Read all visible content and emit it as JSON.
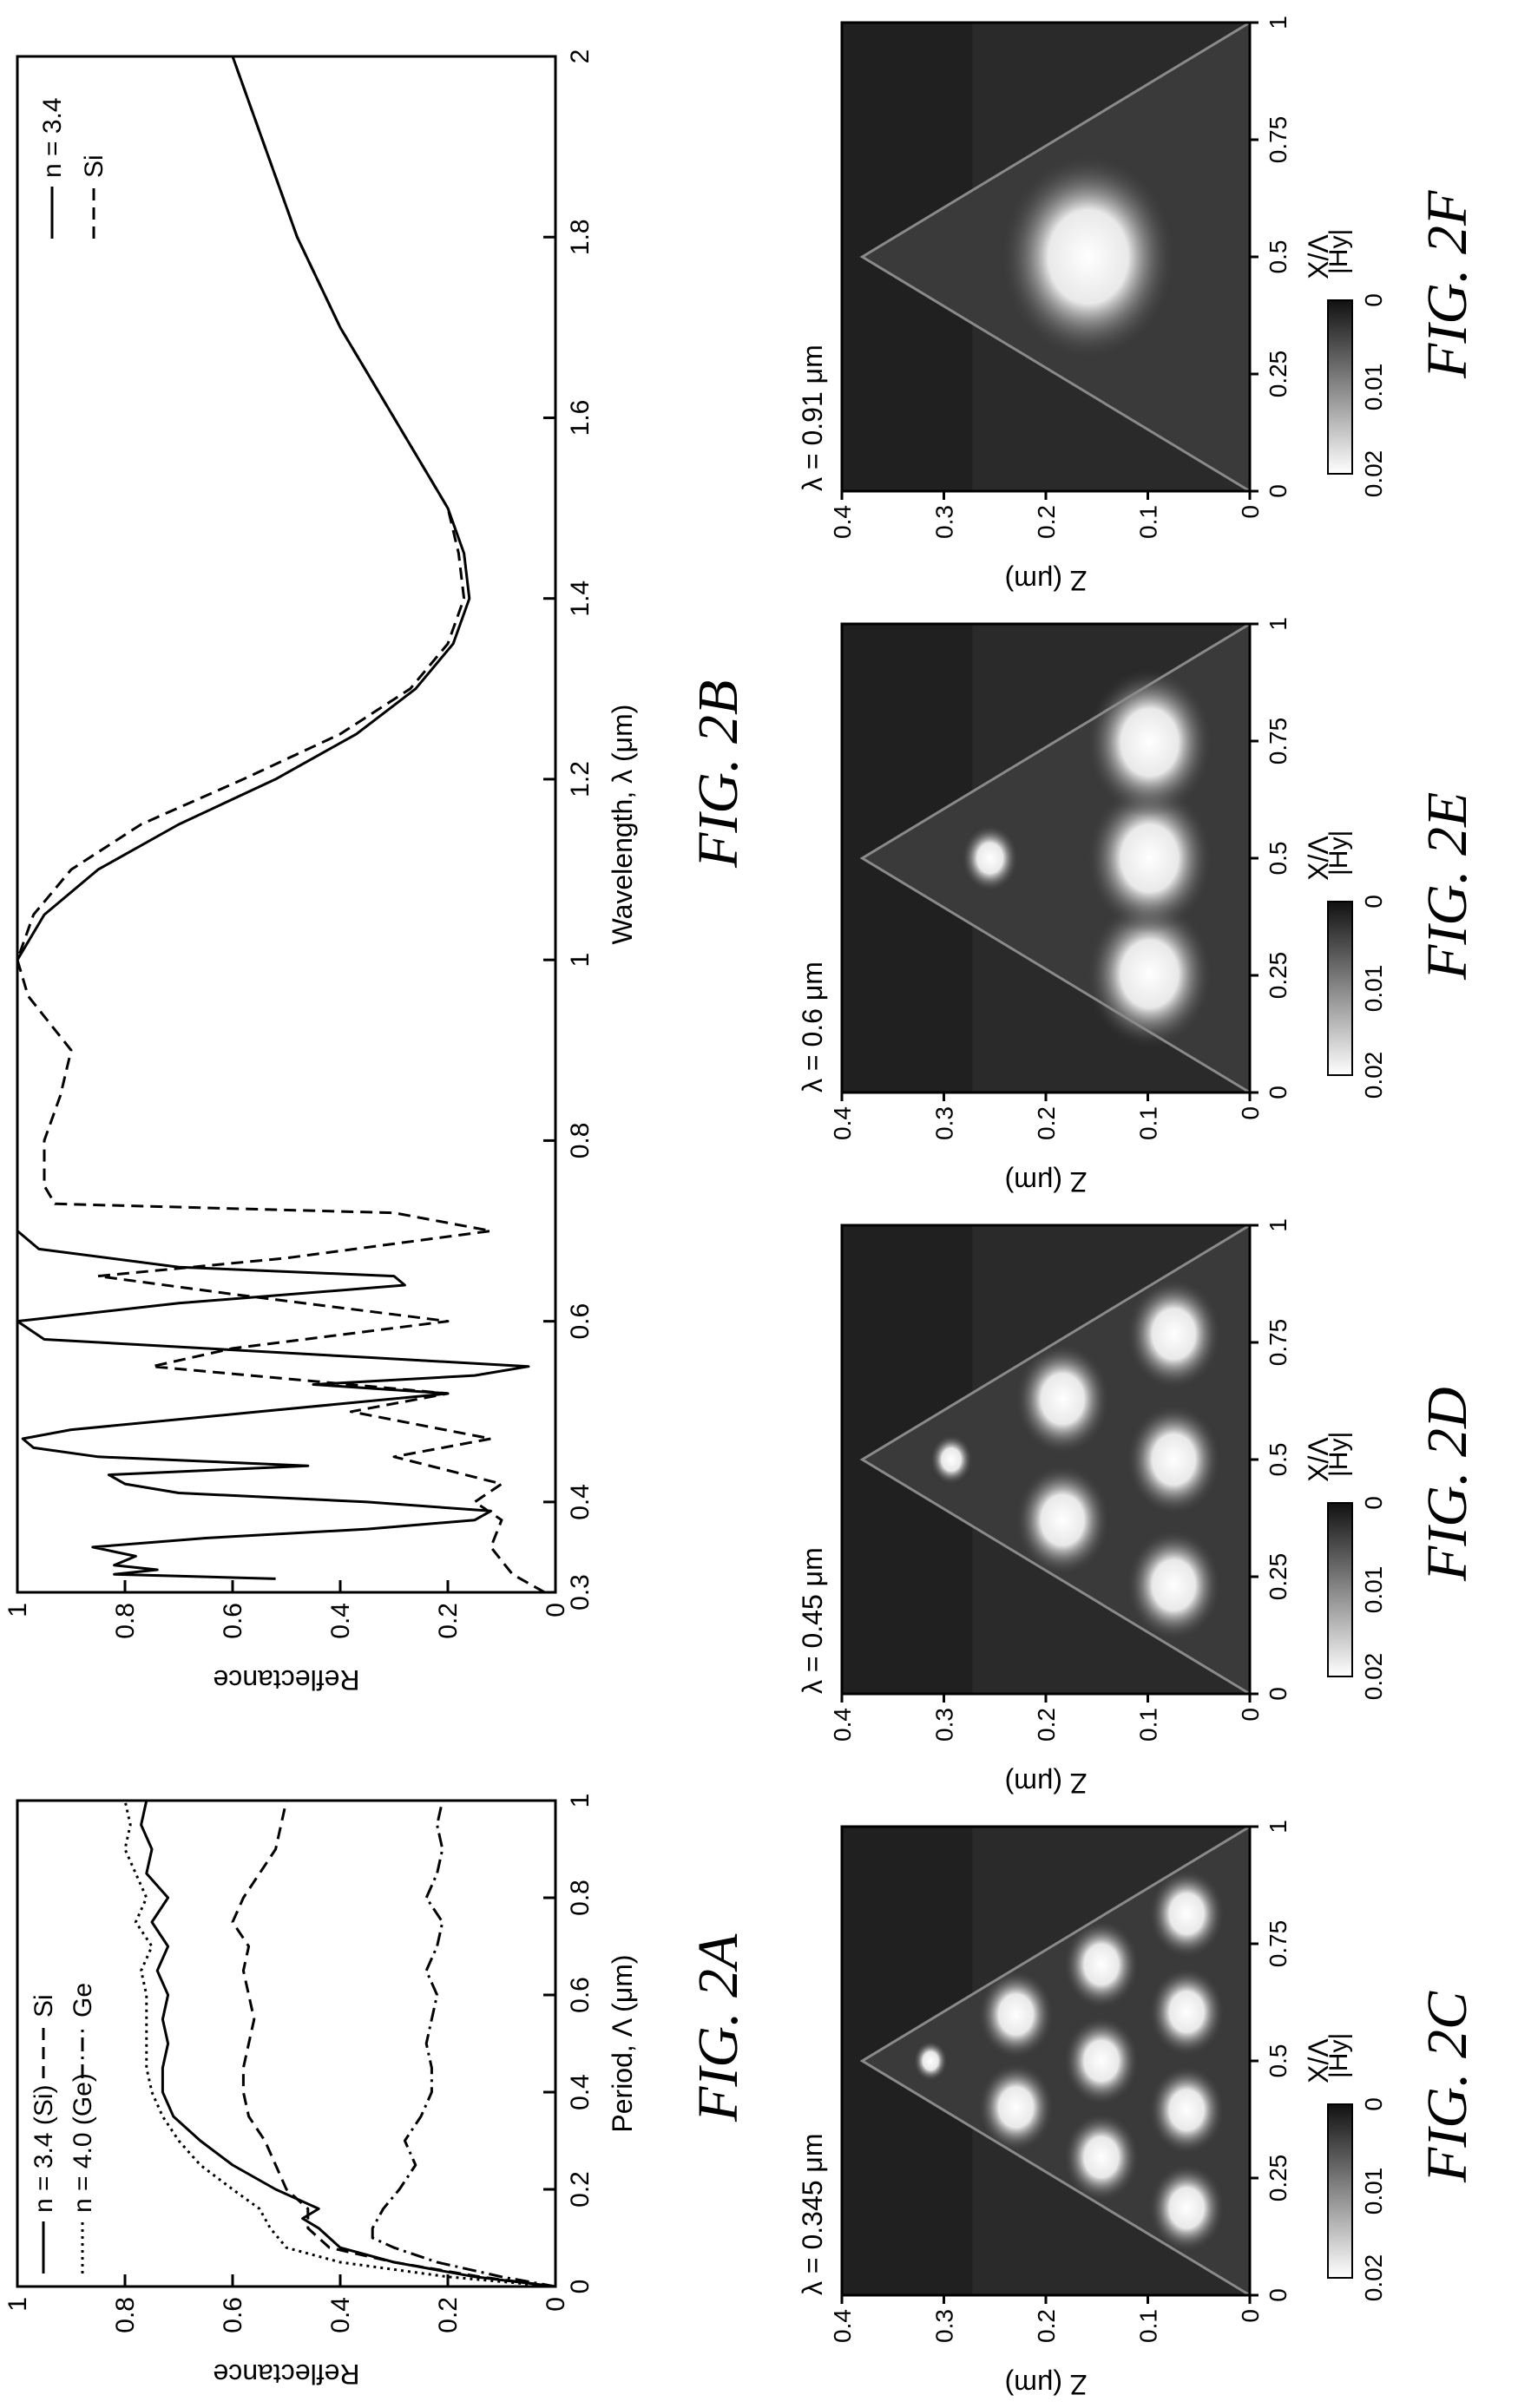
{
  "figures": {
    "fig2a": {
      "caption": "FIG. 2A",
      "chart_data": {
        "type": "line",
        "xlabel": "Period, Λ (μm)",
        "ylabel": "Reflectance",
        "xlim": [
          0,
          1
        ],
        "ylim": [
          0,
          1
        ],
        "xticks": [
          "0",
          "0.2",
          "0.4",
          "0.6",
          "0.8",
          "1"
        ],
        "yticks": [
          "0",
          "0.2",
          "0.4",
          "0.6",
          "0.8",
          "1"
        ],
        "legend_position": "top",
        "series": [
          {
            "name": "n = 3.4 (Si)",
            "style": "solid",
            "x": [
              0,
              0.02,
              0.05,
              0.08,
              0.12,
              0.14,
              0.16,
              0.2,
              0.25,
              0.3,
              0.35,
              0.4,
              0.45,
              0.5,
              0.55,
              0.6,
              0.65,
              0.7,
              0.75,
              0.8,
              0.85,
              0.9,
              0.95,
              1.0
            ],
            "y": [
              0.0,
              0.15,
              0.3,
              0.4,
              0.44,
              0.47,
              0.44,
              0.52,
              0.6,
              0.66,
              0.71,
              0.73,
              0.73,
              0.72,
              0.73,
              0.72,
              0.74,
              0.72,
              0.75,
              0.72,
              0.76,
              0.75,
              0.77,
              0.76
            ]
          },
          {
            "name": "Si",
            "style": "dashed",
            "x": [
              0,
              0.02,
              0.05,
              0.08,
              0.12,
              0.16,
              0.2,
              0.25,
              0.3,
              0.35,
              0.4,
              0.45,
              0.5,
              0.55,
              0.6,
              0.65,
              0.7,
              0.75,
              0.8,
              0.85,
              0.9,
              0.95,
              1.0
            ],
            "y": [
              0.0,
              0.14,
              0.3,
              0.42,
              0.46,
              0.46,
              0.5,
              0.52,
              0.54,
              0.57,
              0.58,
              0.58,
              0.57,
              0.56,
              0.57,
              0.58,
              0.57,
              0.6,
              0.58,
              0.55,
              0.52,
              0.51,
              0.5
            ]
          },
          {
            "name": "n = 4.0 (Ge)",
            "style": "dotted",
            "x": [
              0,
              0.02,
              0.05,
              0.08,
              0.12,
              0.16,
              0.2,
              0.25,
              0.3,
              0.35,
              0.4,
              0.45,
              0.5,
              0.55,
              0.6,
              0.65,
              0.7,
              0.75,
              0.8,
              0.85,
              0.9,
              0.95,
              1.0
            ],
            "y": [
              0.0,
              0.2,
              0.4,
              0.5,
              0.53,
              0.55,
              0.6,
              0.66,
              0.7,
              0.73,
              0.75,
              0.76,
              0.76,
              0.76,
              0.76,
              0.77,
              0.75,
              0.78,
              0.76,
              0.78,
              0.8,
              0.79,
              0.8
            ]
          },
          {
            "name": "Ge",
            "style": "dashdot",
            "x": [
              0,
              0.02,
              0.05,
              0.08,
              0.1,
              0.12,
              0.16,
              0.2,
              0.25,
              0.3,
              0.35,
              0.4,
              0.45,
              0.5,
              0.55,
              0.6,
              0.65,
              0.7,
              0.75,
              0.8,
              0.85,
              0.9,
              0.95,
              1.0
            ],
            "y": [
              0.0,
              0.1,
              0.22,
              0.3,
              0.34,
              0.34,
              0.32,
              0.29,
              0.26,
              0.28,
              0.25,
              0.23,
              0.23,
              0.24,
              0.23,
              0.22,
              0.24,
              0.22,
              0.21,
              0.24,
              0.22,
              0.21,
              0.22,
              0.21
            ]
          }
        ]
      }
    },
    "fig2b": {
      "caption": "FIG. 2B",
      "chart_data": {
        "type": "line",
        "xlabel": "Wavelength, λ (μm)",
        "ylabel": "Reflectance",
        "xlim": [
          0.3,
          2
        ],
        "ylim": [
          0,
          1
        ],
        "xticks": [
          "0.3",
          "0.4",
          "0.6",
          "0.8",
          "1",
          "1.2",
          "1.4",
          "1.6",
          "1.8",
          "2"
        ],
        "yticks": [
          "0",
          "0.2",
          "0.4",
          "0.6",
          "0.8",
          "1"
        ],
        "legend_position": "top-right",
        "series": [
          {
            "name": "n = 3.4",
            "style": "solid",
            "x": [
              0.315,
              0.32,
              0.325,
              0.33,
              0.34,
              0.35,
              0.36,
              0.37,
              0.38,
              0.39,
              0.4,
              0.41,
              0.42,
              0.43,
              0.44,
              0.45,
              0.46,
              0.47,
              0.48,
              0.5,
              0.52,
              0.53,
              0.54,
              0.55,
              0.56,
              0.58,
              0.6,
              0.62,
              0.64,
              0.65,
              0.66,
              0.68,
              0.7,
              0.72,
              0.75,
              0.8,
              0.9,
              1.0,
              1.05,
              1.1,
              1.15,
              1.2,
              1.25,
              1.3,
              1.35,
              1.4,
              1.45,
              1.5,
              1.6,
              1.7,
              1.8,
              1.9,
              2.0
            ],
            "y": [
              0.52,
              0.82,
              0.74,
              0.82,
              0.78,
              0.86,
              0.65,
              0.35,
              0.15,
              0.12,
              0.35,
              0.7,
              0.8,
              0.83,
              0.46,
              0.85,
              0.97,
              0.99,
              0.9,
              0.55,
              0.2,
              0.45,
              0.15,
              0.05,
              0.35,
              0.95,
              1.0,
              0.7,
              0.28,
              0.3,
              0.7,
              0.96,
              1.0,
              1.0,
              1.0,
              1.0,
              1.0,
              1.0,
              0.95,
              0.85,
              0.7,
              0.52,
              0.37,
              0.26,
              0.19,
              0.16,
              0.17,
              0.2,
              0.3,
              0.4,
              0.48,
              0.54,
              0.6
            ]
          },
          {
            "name": "Si",
            "style": "dashed",
            "x": [
              0.3,
              0.32,
              0.35,
              0.38,
              0.4,
              0.42,
              0.45,
              0.47,
              0.5,
              0.52,
              0.55,
              0.57,
              0.6,
              0.63,
              0.65,
              0.67,
              0.7,
              0.72,
              0.73,
              0.75,
              0.8,
              0.85,
              0.9,
              0.93,
              0.96,
              1.0,
              1.05,
              1.1,
              1.15,
              1.2,
              1.25,
              1.3,
              1.35,
              1.4,
              1.45,
              1.5,
              1.6,
              1.7,
              1.8,
              1.9,
              2.0
            ],
            "y": [
              0.02,
              0.08,
              0.12,
              0.1,
              0.15,
              0.1,
              0.3,
              0.12,
              0.38,
              0.2,
              0.75,
              0.6,
              0.2,
              0.6,
              0.85,
              0.5,
              0.12,
              0.3,
              0.93,
              0.95,
              0.95,
              0.92,
              0.9,
              0.94,
              0.98,
              1.0,
              0.97,
              0.9,
              0.77,
              0.58,
              0.4,
              0.27,
              0.2,
              0.17,
              0.18,
              0.2,
              0.3,
              0.4,
              0.48,
              0.54,
              0.6
            ]
          }
        ]
      }
    },
    "field_maps": [
      {
        "id": "2C",
        "caption": "FIG. 2C",
        "title": "λ = 0.345 μm",
        "n_lobes": [
          1,
          2,
          3,
          4
        ]
      },
      {
        "id": "2D",
        "caption": "FIG. 2D",
        "title": "λ = 0.45 μm",
        "n_lobes": [
          1,
          2,
          3
        ]
      },
      {
        "id": "2E",
        "caption": "FIG. 2E",
        "title": "λ = 0.6 μm",
        "n_lobes": [
          1,
          3
        ]
      },
      {
        "id": "2F",
        "caption": "FIG. 2F",
        "title": "λ = 0.91 μm",
        "n_lobes": [
          1
        ]
      }
    ],
    "field_axes": {
      "xlabel": "X/Λ",
      "ylabel": "Z (μm)",
      "xticks": [
        "0",
        "0.25",
        "0.5",
        "0.75",
        "1"
      ],
      "yticks": [
        "0",
        "0.1",
        "0.2",
        "0.3",
        "0.4"
      ],
      "colorbar_label": "|Hy|",
      "colorbar_ticks": [
        "0.02",
        "0.01",
        "0"
      ]
    }
  }
}
